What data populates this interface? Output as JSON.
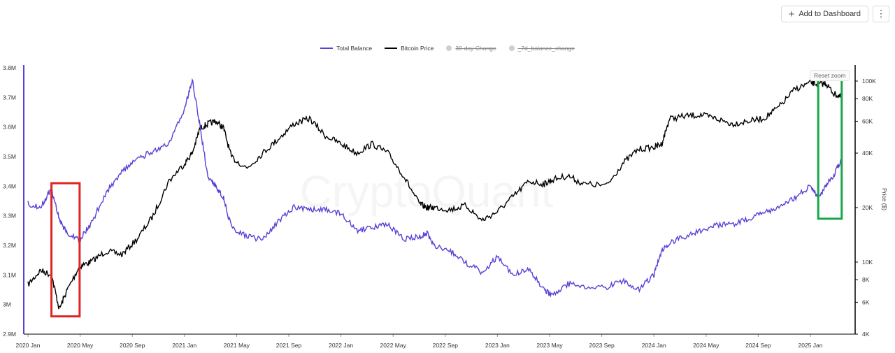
{
  "toolbar": {
    "add_label": "Add to Dashboard",
    "more_icon": "⋮"
  },
  "reset_label": "Reset zoom",
  "watermark": "CryptoQuant",
  "colors": {
    "balance": "#5b3fd6",
    "price": "#000000",
    "red_box": "#e02424",
    "green_box": "#19a64a"
  },
  "chart_data": {
    "type": "line",
    "legend": [
      {
        "name": "Total Balance",
        "color": "#5b3fd6",
        "active": true
      },
      {
        "name": "Bitcoin Price",
        "color": "#000000",
        "active": true
      },
      {
        "name": "30-day Change",
        "color": "#cfcfcf",
        "active": false
      },
      {
        "name": "_7d_balance_change",
        "color": "#cfcfcf",
        "active": false
      }
    ],
    "x_ticks": [
      "2020 Jan",
      "2020 May",
      "2020 Sep",
      "2021 Jan",
      "2021 May",
      "2021 Sep",
      "2022 Jan",
      "2022 May",
      "2022 Sep",
      "2023 Jan",
      "2023 May",
      "2023 Sep",
      "2024 Jan",
      "2024 May",
      "2024 Sep",
      "2025 Jan"
    ],
    "y_left": {
      "ticks": [
        "2.9M",
        "3M",
        "3.1M",
        "3.2M",
        "3.3M",
        "3.4M",
        "3.5M",
        "3.6M",
        "3.7M",
        "3.8M"
      ],
      "range": [
        2.9,
        3.8
      ]
    },
    "y_right": {
      "label": "Price ($)",
      "ticks": [
        4000,
        6000,
        8000,
        10000,
        20000,
        40000,
        60000,
        80000,
        100000
      ],
      "tick_labels": [
        "4K",
        "6K",
        "8K",
        "10K",
        "20K",
        "40K",
        "60K",
        "80K",
        "100K"
      ],
      "scale": "log"
    },
    "series": [
      {
        "name": "Total Balance",
        "x": [
          2020.0,
          2020.08,
          2020.15,
          2020.2,
          2020.25,
          2020.33,
          2020.4,
          2020.5,
          2020.6,
          2020.7,
          2020.8,
          2020.9,
          2021.0,
          2021.05,
          2021.1,
          2021.15,
          2021.2,
          2021.25,
          2021.3,
          2021.4,
          2021.5,
          2021.6,
          2021.7,
          2021.8,
          2021.9,
          2022.0,
          2022.1,
          2022.2,
          2022.3,
          2022.4,
          2022.5,
          2022.55,
          2022.6,
          2022.7,
          2022.8,
          2022.9,
          2023.0,
          2023.1,
          2023.2,
          2023.3,
          2023.35,
          2023.45,
          2023.55,
          2023.7,
          2023.8,
          2023.9,
          2024.0,
          2024.05,
          2024.1,
          2024.2,
          2024.3,
          2024.4,
          2024.5,
          2024.6,
          2024.7,
          2024.8,
          2024.9,
          2025.0,
          2025.05,
          2025.1,
          2025.15,
          2025.2
        ],
        "y": [
          3.34,
          3.33,
          3.39,
          3.29,
          3.24,
          3.22,
          3.27,
          3.38,
          3.45,
          3.49,
          3.52,
          3.54,
          3.66,
          3.76,
          3.6,
          3.43,
          3.4,
          3.36,
          3.26,
          3.23,
          3.22,
          3.28,
          3.33,
          3.32,
          3.32,
          3.31,
          3.25,
          3.26,
          3.27,
          3.22,
          3.23,
          3.24,
          3.2,
          3.18,
          3.14,
          3.11,
          3.16,
          3.1,
          3.12,
          3.05,
          3.03,
          3.07,
          3.06,
          3.06,
          3.08,
          3.05,
          3.1,
          3.18,
          3.21,
          3.23,
          3.25,
          3.27,
          3.27,
          3.29,
          3.31,
          3.33,
          3.36,
          3.4,
          3.36,
          3.4,
          3.44,
          3.49
        ]
      },
      {
        "name": "Bitcoin Price",
        "x": [
          2020.0,
          2020.08,
          2020.15,
          2020.2,
          2020.25,
          2020.33,
          2020.4,
          2020.5,
          2020.6,
          2020.7,
          2020.8,
          2020.9,
          2021.0,
          2021.05,
          2021.1,
          2021.15,
          2021.2,
          2021.25,
          2021.3,
          2021.4,
          2021.5,
          2021.6,
          2021.7,
          2021.8,
          2021.9,
          2022.0,
          2022.1,
          2022.2,
          2022.3,
          2022.4,
          2022.5,
          2022.55,
          2022.6,
          2022.7,
          2022.8,
          2022.9,
          2023.0,
          2023.1,
          2023.2,
          2023.3,
          2023.35,
          2023.45,
          2023.55,
          2023.7,
          2023.8,
          2023.9,
          2024.0,
          2024.05,
          2024.1,
          2024.2,
          2024.3,
          2024.4,
          2024.5,
          2024.6,
          2024.7,
          2024.8,
          2024.9,
          2025.0,
          2025.05,
          2025.1,
          2025.15,
          2025.2
        ],
        "y": [
          7500,
          9000,
          8500,
          5500,
          7000,
          9500,
          10000,
          11500,
          11000,
          13500,
          18000,
          28000,
          35000,
          40000,
          55000,
          58000,
          60000,
          55000,
          38000,
          33000,
          40000,
          48000,
          58000,
          62000,
          50000,
          45000,
          40000,
          45000,
          40000,
          30000,
          21000,
          20000,
          20000,
          19500,
          20500,
          17000,
          19000,
          23000,
          28000,
          27000,
          28500,
          30000,
          27000,
          26500,
          35000,
          42000,
          43000,
          45000,
          62000,
          64000,
          65000,
          62000,
          58000,
          60000,
          62000,
          72000,
          90000,
          98000,
          96000,
          97000,
          85000,
          82000
        ]
      }
    ],
    "annotations": [
      {
        "type": "box",
        "color": "red",
        "x": [
          2020.15,
          2020.33
        ],
        "y_left": [
          2.96,
          3.41
        ]
      },
      {
        "type": "box",
        "color": "green",
        "x": [
          2025.05,
          2025.2
        ],
        "y_left": [
          3.29,
          3.77
        ]
      }
    ]
  }
}
